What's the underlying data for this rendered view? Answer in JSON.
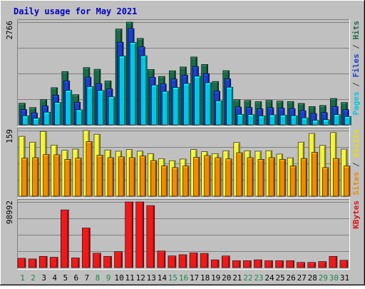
{
  "chart_data": {
    "type": "bar",
    "title": "Daily usage for May 2021",
    "categories": [
      "1",
      "2",
      "3",
      "4",
      "5",
      "6",
      "7",
      "8",
      "9",
      "10",
      "11",
      "12",
      "13",
      "14",
      "15",
      "16",
      "17",
      "18",
      "19",
      "20",
      "21",
      "22",
      "23",
      "24",
      "25",
      "26",
      "27",
      "28",
      "29",
      "30",
      "31"
    ],
    "weekend_days": [
      "1",
      "2",
      "8",
      "9",
      "15",
      "16",
      "22",
      "23",
      "29",
      "30"
    ],
    "panels": [
      {
        "id": "top",
        "ymax_label": "2766",
        "ylim": [
          0,
          2766
        ],
        "side_label": [
          {
            "text": "Pages",
            "color": "#00c8e0"
          },
          {
            "text": " / ",
            "color": "#444444"
          },
          {
            "text": "Files",
            "color": "#1a3fd0"
          },
          {
            "text": " / ",
            "color": "#444444"
          },
          {
            "text": "Hits",
            "color": "#1a6b4a"
          }
        ],
        "series": [
          {
            "name": "Hits",
            "color": "#1a6b4a",
            "values": [
              583,
              466,
              681,
              1001,
              1435,
              813,
              1542,
              1497,
              1183,
              2581,
              2766,
              2328,
              1492,
              1305,
              1456,
              1558,
              1827,
              1627,
              1169,
              1460,
              678,
              657,
              625,
              659,
              640,
              628,
              578,
              493,
              522,
              711,
              601
            ]
          },
          {
            "name": "Files",
            "color": "#1a3fd0",
            "values": [
              510,
              418,
              608,
              898,
              1279,
              706,
              1381,
              1206,
              1065,
              2319,
              2688,
              2195,
              1377,
              1199,
              1330,
              1433,
              1668,
              1476,
              1004,
              1334,
              577,
              562,
              530,
              560,
              548,
              533,
              479,
              402,
              426,
              588,
              506
            ]
          },
          {
            "name": "Pages",
            "color": "#00c8e0",
            "values": [
              437,
              371,
              533,
              796,
              1122,
              597,
              1220,
              1115,
              946,
              2046,
              2409,
              2052,
              1264,
              1093,
              1199,
              1306,
              1504,
              1325,
              840,
              1206,
              475,
              466,
              433,
              462,
              456,
              438,
              381,
              312,
              330,
              467,
              415
            ]
          }
        ]
      },
      {
        "id": "middle",
        "ymax_label": "159",
        "ylim": [
          0,
          159
        ],
        "side_label": [
          {
            "text": "Sites",
            "color": "#f08a00"
          },
          {
            "text": " / ",
            "color": "#444444"
          },
          {
            "text": "Visits",
            "color": "#e8e000"
          }
        ],
        "series": [
          {
            "name": "Visits",
            "color": "#f4f43a",
            "values": [
              145,
              131,
              157,
              124,
              111,
              114,
              159,
              150,
              112,
              109,
              113,
              109,
              103,
              91,
              86,
              90,
              113,
              108,
              103,
              110,
              130,
              110,
              109,
              110,
              102,
              93,
              131,
              152,
              123,
              154,
              114
            ]
          },
          {
            "name": "Sites",
            "color": "#f08a00",
            "values": [
              101,
              102,
              110,
              109,
              98,
              101,
              141,
              108,
              102,
              104,
              102,
              106,
              95,
              82,
              78,
              82,
              103,
              107,
              102,
              99,
              114,
              102,
              98,
              102,
              98,
              82,
              100,
              115,
              78,
              100,
              82
            ]
          }
        ]
      },
      {
        "id": "bottom",
        "ymax_label": "98992",
        "ylim": [
          0,
          98992
        ],
        "side_label": [
          {
            "text": "KBytes",
            "color": "#e01010"
          }
        ],
        "series": [
          {
            "name": "KBytes",
            "color": "#f01818",
            "values": [
              14000,
              13000,
              16900,
              15600,
              87000,
              14600,
              59700,
              21700,
              16900,
              24000,
              98992,
              98992,
              93500,
              25000,
              17600,
              19400,
              22100,
              21400,
              11700,
              17500,
              10400,
              10400,
              11700,
              10400,
              10400,
              10400,
              7800,
              7800,
              9100,
              16900,
              11000
            ]
          }
        ]
      }
    ]
  }
}
